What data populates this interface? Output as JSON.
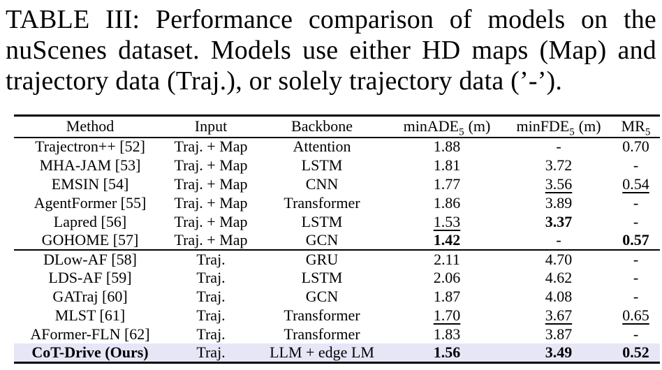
{
  "caption": {
    "lines": [
      "TABLE III: Performance comparison of models on the",
      "nuScenes dataset. Models use either HD maps (Map) and",
      "trajectory data (Traj.), or solely trajectory data (’-’)."
    ]
  },
  "table": {
    "highlight_color": "#e6e6f7",
    "columns": [
      {
        "label": "Method"
      },
      {
        "label": "Input"
      },
      {
        "label": "Backbone"
      },
      {
        "label": "minADE",
        "sub": "5",
        "unit": "(m)"
      },
      {
        "label": "minFDE",
        "sub": "5",
        "unit": "(m)"
      },
      {
        "label": "MR",
        "sub": "5"
      }
    ],
    "rows": [
      {
        "method": "Trajectron++ [52]",
        "input": "Traj. + Map",
        "backbone": "Attention",
        "minade": "1.88",
        "minfde": "-",
        "mr": "0.70"
      },
      {
        "method": "MHA-JAM [53]",
        "input": "Traj. + Map",
        "backbone": "LSTM",
        "minade": "1.81",
        "minfde": "3.72",
        "mr": "-"
      },
      {
        "method": "EMSIN [54]",
        "input": "Traj. + Map",
        "backbone": "CNN",
        "minade": "1.77",
        "minfde": "3.56",
        "mr": "0.54"
      },
      {
        "method": "AgentFormer [55]",
        "input": "Traj. + Map",
        "backbone": "Transformer",
        "minade": "1.86",
        "minfde": "3.89",
        "mr": "-"
      },
      {
        "method": "Lapred [56]",
        "input": "Traj. + Map",
        "backbone": "LSTM",
        "minade": "1.53",
        "minfde": "3.37",
        "mr": "-"
      },
      {
        "method": "GOHOME [57]",
        "input": "Traj. + Map",
        "backbone": "GCN",
        "minade": "1.42",
        "minfde": "-",
        "mr": "0.57"
      },
      {
        "method": "DLow-AF [58]",
        "input": "Traj.",
        "backbone": "GRU",
        "minade": "2.11",
        "minfde": "4.70",
        "mr": "-"
      },
      {
        "method": "LDS-AF [59]",
        "input": "Traj.",
        "backbone": "LSTM",
        "minade": "2.06",
        "minfde": "4.62",
        "mr": "-"
      },
      {
        "method": "GATraj [60]",
        "input": "Traj.",
        "backbone": "GCN",
        "minade": "1.87",
        "minfde": "4.08",
        "mr": "-"
      },
      {
        "method": "MLST [61]",
        "input": "Traj.",
        "backbone": "Transformer",
        "minade": "1.70",
        "minfde": "3.67",
        "mr": "0.65"
      },
      {
        "method": "AFormer-FLN [62]",
        "input": "Traj.",
        "backbone": "Transformer",
        "minade": "1.83",
        "minfde": "3.87",
        "mr": "-"
      },
      {
        "method": "CoT-Drive (Ours)",
        "input": "Traj.",
        "backbone": "LLM + edge LM",
        "minade": "1.56",
        "minfde": "3.49",
        "mr": "0.52"
      }
    ]
  }
}
